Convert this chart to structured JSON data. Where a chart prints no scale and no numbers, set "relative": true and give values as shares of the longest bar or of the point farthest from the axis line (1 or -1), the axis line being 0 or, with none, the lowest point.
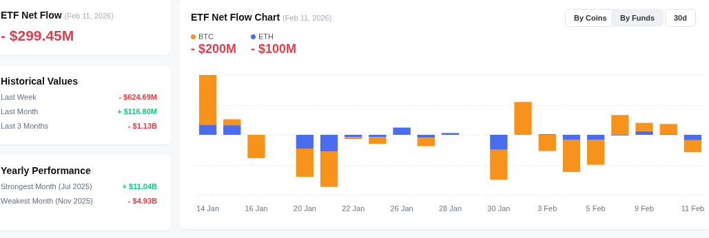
{
  "chart_data": [
    {
      "type": "other",
      "title": "ETF Net Flow",
      "subtitle": "(Feb 11, 2026)",
      "annotations": [
        "- $299.45M"
      ]
    },
    {
      "type": "other",
      "title": "Historical Values",
      "annotations": [
        "Last Week",
        "- $624.69M",
        "Last Month",
        "+ $116.80M",
        "Last 3 Months",
        "- $1.13B"
      ]
    },
    {
      "type": "other",
      "title": "Yearly Performance",
      "annotations": [
        "Strongest Month (Jul 2025)",
        "+ $11.04B",
        "Weakest Month (Nov 2025)",
        "- $4.93B"
      ]
    },
    {
      "type": "bar",
      "title": "ETF Net Flow Chart",
      "subtitle": "(Feb 11, 2026)",
      "stacked": true,
      "relative": true,
      "grid": "y",
      "legend": "top left",
      "categories": [
        "14 Jan",
        null,
        "16 Jan",
        null,
        "20 Jan",
        null,
        "22 Jan",
        null,
        "26 Jan",
        null,
        "28 Jan",
        null,
        "30 Jan",
        null,
        "3 Feb",
        null,
        "5 Feb",
        null,
        "9 Feb",
        null,
        "11 Feb"
      ],
      "series": [
        {
          "name": "ETH",
          "color": "#4a6cf0",
          "values": [
            0.17,
            0.16,
            0,
            null,
            -0.23,
            -0.28,
            -0.04,
            -0.04,
            0.12,
            -0.05,
            0.03,
            null,
            -0.25,
            0,
            0.01,
            -0.08,
            -0.08,
            -0.01,
            0.06,
            0.01,
            -0.09
          ]
        },
        {
          "name": "BTC",
          "color": "#f7931a",
          "values": [
            0.83,
            0.1,
            -0.39,
            null,
            -0.47,
            -0.59,
            -0.03,
            -0.11,
            0,
            -0.14,
            0,
            null,
            -0.5,
            0.55,
            -0.27,
            -0.54,
            -0.42,
            0.33,
            0.14,
            0.17,
            -0.2
          ]
        }
      ],
      "annotations": [
        "- $100M",
        "- $200M",
        "By Coins",
        "By Funds",
        "30d"
      ]
    }
  ]
}
